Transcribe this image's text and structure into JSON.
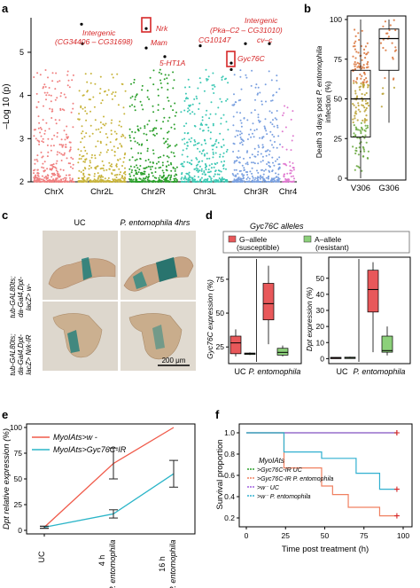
{
  "panels": {
    "a": {
      "letter": "a",
      "ylabel": "–Log 10 (p)",
      "yticks": [
        "2",
        "3",
        "4",
        "5"
      ],
      "chromosomes": [
        "ChrX",
        "Chr2L",
        "Chr2R",
        "Chr3L",
        "Chr3R",
        "Chr4"
      ],
      "annotations": [
        {
          "text": "Intergenic",
          "chr": "Chr2L",
          "pval": 5.2
        },
        {
          "text": "(CG34406 – CG31698)",
          "chr": "Chr2L",
          "pval": 5.2
        },
        {
          "text": "Nrk",
          "chr": "Chr2R",
          "pval": 5.6
        },
        {
          "text": "Mam",
          "chr": "Chr2R",
          "pval": 5.1
        },
        {
          "text": "5-HT1A",
          "chr": "Chr2R",
          "pval": 4.6
        },
        {
          "text": "CG10147",
          "chr": "Chr3L",
          "pval": 5.2
        },
        {
          "text": "Intergenic",
          "chr": "Chr3R",
          "pval": 5.4
        },
        {
          "text": "(Pka–C2 – CG31010)",
          "chr": "Chr3R",
          "pval": 5.4
        },
        {
          "text": "cv–c",
          "chr": "Chr3R",
          "pval": 5.2
        },
        {
          "text": "Gyc76C",
          "chr": "Chr3L",
          "pval": 4.7
        }
      ],
      "colors": [
        "#f08080",
        "#c8b43c",
        "#2ca02c",
        "#3cc8b4",
        "#7aa0e0",
        "#e07ad0"
      ]
    },
    "b": {
      "letter": "b",
      "ylabel": "Death 3 days post P. entomophila infection (%)",
      "yticks": [
        "0",
        "25",
        "50",
        "75",
        "100"
      ],
      "groups": [
        "V306",
        "G306"
      ]
    },
    "c": {
      "letter": "c",
      "col1": "UC",
      "col2": "P. entomophila 4hrs",
      "row1": "tub-GAL80ts; da-Gal4,Dpt-lacZ> w-",
      "row2": "tub-GAL80ts; da-Gal4,Dpt-lacZ> Nrk-IR",
      "scalebar": "200 μm"
    },
    "d": {
      "letter": "d",
      "legend_title": "Gyc76C alleles",
      "legend_g1": "G–allele",
      "legend_g2": "(susceptible)",
      "legend_a1": "A–allele",
      "legend_a2": "(resistant)",
      "left_ylabel": "Gyc76C expression (%)",
      "right_ylabel": "Dpt expression (%)",
      "x_uc": "UC",
      "x_pe": "P. entomophila",
      "left_yticks": [
        "25",
        "50",
        "75"
      ],
      "right_yticks": [
        "0",
        "10",
        "20",
        "30",
        "40",
        "50"
      ]
    },
    "e": {
      "letter": "e",
      "ylabel": "Dpt relative expression (%)",
      "yticks": [
        "0",
        "25",
        "50",
        "75",
        "100"
      ],
      "legend1": "MyoIAts>w -",
      "legend2": "MyoIAts>Gyc76C-IR",
      "xticks": [
        "UC",
        "4 h",
        "P. entomophila",
        "16 h",
        "P. entomophila"
      ]
    },
    "f": {
      "letter": "f",
      "ylabel": "Survival proportion",
      "xlabel": "Time post treatment (h)",
      "yticks": [
        "0.2",
        "0.4",
        "0.6",
        "0.8",
        "1.0"
      ],
      "xticks": [
        "0",
        "25",
        "50",
        "75",
        "100"
      ],
      "legend_title": "MyoIAts",
      "legend_items": [
        ">Gyc76C-IR UC",
        ">Gyc76C-IR P. entomophila",
        ">w⁻ UC",
        ">w⁻ P. entomophila"
      ]
    }
  },
  "chart_data": [
    {
      "panel": "a",
      "type": "scatter",
      "title": "",
      "xlabel": "",
      "ylabel": "–Log 10 (p)",
      "categories": [
        "ChrX",
        "Chr2L",
        "Chr2R",
        "Chr3L",
        "Chr3R",
        "Chr4"
      ],
      "ylim": [
        2,
        5.8
      ],
      "highlighted": [
        {
          "label": "Intergenic (CG34406 – CG31698)",
          "chr": "Chr2L",
          "y": 5.2
        },
        {
          "label": "Nrk",
          "chr": "Chr2R",
          "y": 5.65
        },
        {
          "label": "Nrk",
          "chr": "Chr2R",
          "y": 5.55
        },
        {
          "label": "Mam",
          "chr": "Chr2R",
          "y": 5.1
        },
        {
          "label": "5-HT1A",
          "chr": "Chr2R",
          "y": 4.9
        },
        {
          "label": "CG10147",
          "chr": "Chr3L",
          "y": 5.15
        },
        {
          "label": "Gyc76C",
          "chr": "Chr3L",
          "y": 4.75
        },
        {
          "label": "Gyc76C",
          "chr": "Chr3L",
          "y": 4.6
        },
        {
          "label": "Intergenic (Pka–C2 – CG31010)",
          "chr": "Chr3R",
          "y": 5.2
        },
        {
          "label": "cv–c",
          "chr": "Chr3R",
          "y": 5.2
        }
      ]
    },
    {
      "panel": "b",
      "type": "box",
      "categories": [
        "V306",
        "G306"
      ],
      "ylim": [
        0,
        100
      ],
      "boxes": [
        {
          "name": "V306",
          "min": 0,
          "q1": 26,
          "median": 50,
          "q3": 68,
          "max": 100
        },
        {
          "name": "G306",
          "min": 35,
          "q1": 68,
          "median": 88,
          "q3": 94,
          "max": 100
        }
      ]
    },
    {
      "panel": "d-left",
      "type": "box",
      "ylabel": "Gyc76C expression (%)",
      "categories": [
        "UC",
        "P. entomophila"
      ],
      "series": [
        {
          "name": "G–allele (susceptible)",
          "boxes": [
            {
              "cat": "UC",
              "min": 18,
              "q1": 20,
              "median": 28,
              "q3": 33,
              "max": 38
            },
            {
              "cat": "P. entomophila",
              "min": 27,
              "q1": 45,
              "median": 57,
              "q3": 72,
              "max": 85
            }
          ]
        },
        {
          "name": "A–allele (resistant)",
          "boxes": [
            {
              "cat": "UC",
              "min": 19,
              "q1": 19.5,
              "median": 20,
              "q3": 20.5,
              "max": 21
            },
            {
              "cat": "P. entomophila",
              "min": 18,
              "q1": 19,
              "median": 21,
              "q3": 24,
              "max": 26
            }
          ]
        }
      ]
    },
    {
      "panel": "d-right",
      "type": "box",
      "ylabel": "Dpt expression (%)",
      "categories": [
        "UC",
        "P. entomophila"
      ],
      "series": [
        {
          "name": "G–allele (susceptible)",
          "boxes": [
            {
              "cat": "UC",
              "min": 0,
              "q1": 0.2,
              "median": 0.5,
              "q3": 0.8,
              "max": 1
            },
            {
              "cat": "P. entomophila",
              "min": 4,
              "q1": 29,
              "median": 43,
              "q3": 55,
              "max": 60
            }
          ]
        },
        {
          "name": "A–allele (resistant)",
          "boxes": [
            {
              "cat": "UC",
              "min": 0,
              "q1": 0.3,
              "median": 0.6,
              "q3": 0.9,
              "max": 1.2
            },
            {
              "cat": "P. entomophila",
              "min": 2,
              "q1": 4,
              "median": 5,
              "q3": 14,
              "max": 20
            }
          ]
        }
      ]
    },
    {
      "panel": "e",
      "type": "line",
      "ylabel": "Dpt relative expression (%)",
      "categories": [
        "UC",
        "4 h P. entomophila",
        "16 h P. entomophila"
      ],
      "ylim": [
        0,
        100
      ],
      "series": [
        {
          "name": "MyoIAts>w -",
          "color": "#f05a4a",
          "values": [
            3,
            65,
            100
          ],
          "errors": [
            1,
            15,
            0
          ]
        },
        {
          "name": "MyoIAts>Gyc76C-IR",
          "color": "#2bb5c8",
          "values": [
            3,
            16,
            55
          ],
          "errors": [
            1,
            4,
            13
          ]
        }
      ]
    },
    {
      "panel": "f",
      "type": "line",
      "xlabel": "Time post treatment (h)",
      "ylabel": "Survival proportion",
      "xlim": [
        0,
        100
      ],
      "ylim": [
        0.15,
        1.05
      ],
      "series": [
        {
          "name": ">Gyc76C-IR UC",
          "color": "#2ca02c",
          "x": [
            0,
            96
          ],
          "y": [
            1.0,
            1.0
          ]
        },
        {
          "name": ">Gyc76C-IR P. entomophila",
          "color": "#f08060",
          "x": [
            0,
            24,
            24,
            48,
            48,
            55,
            55,
            65,
            65,
            85,
            85,
            96
          ],
          "y": [
            1.0,
            1.0,
            0.67,
            0.67,
            0.5,
            0.5,
            0.42,
            0.42,
            0.3,
            0.3,
            0.22,
            0.22
          ]
        },
        {
          "name": ">w⁻ UC",
          "color": "#a060e0",
          "x": [
            0,
            96
          ],
          "y": [
            1.0,
            1.0
          ]
        },
        {
          "name": ">w⁻ P. entomophila",
          "color": "#30b0d0",
          "x": [
            0,
            24,
            24,
            48,
            48,
            70,
            70,
            85,
            85,
            96
          ],
          "y": [
            1.0,
            1.0,
            0.82,
            0.82,
            0.76,
            0.76,
            0.62,
            0.62,
            0.47,
            0.47
          ]
        }
      ]
    }
  ]
}
